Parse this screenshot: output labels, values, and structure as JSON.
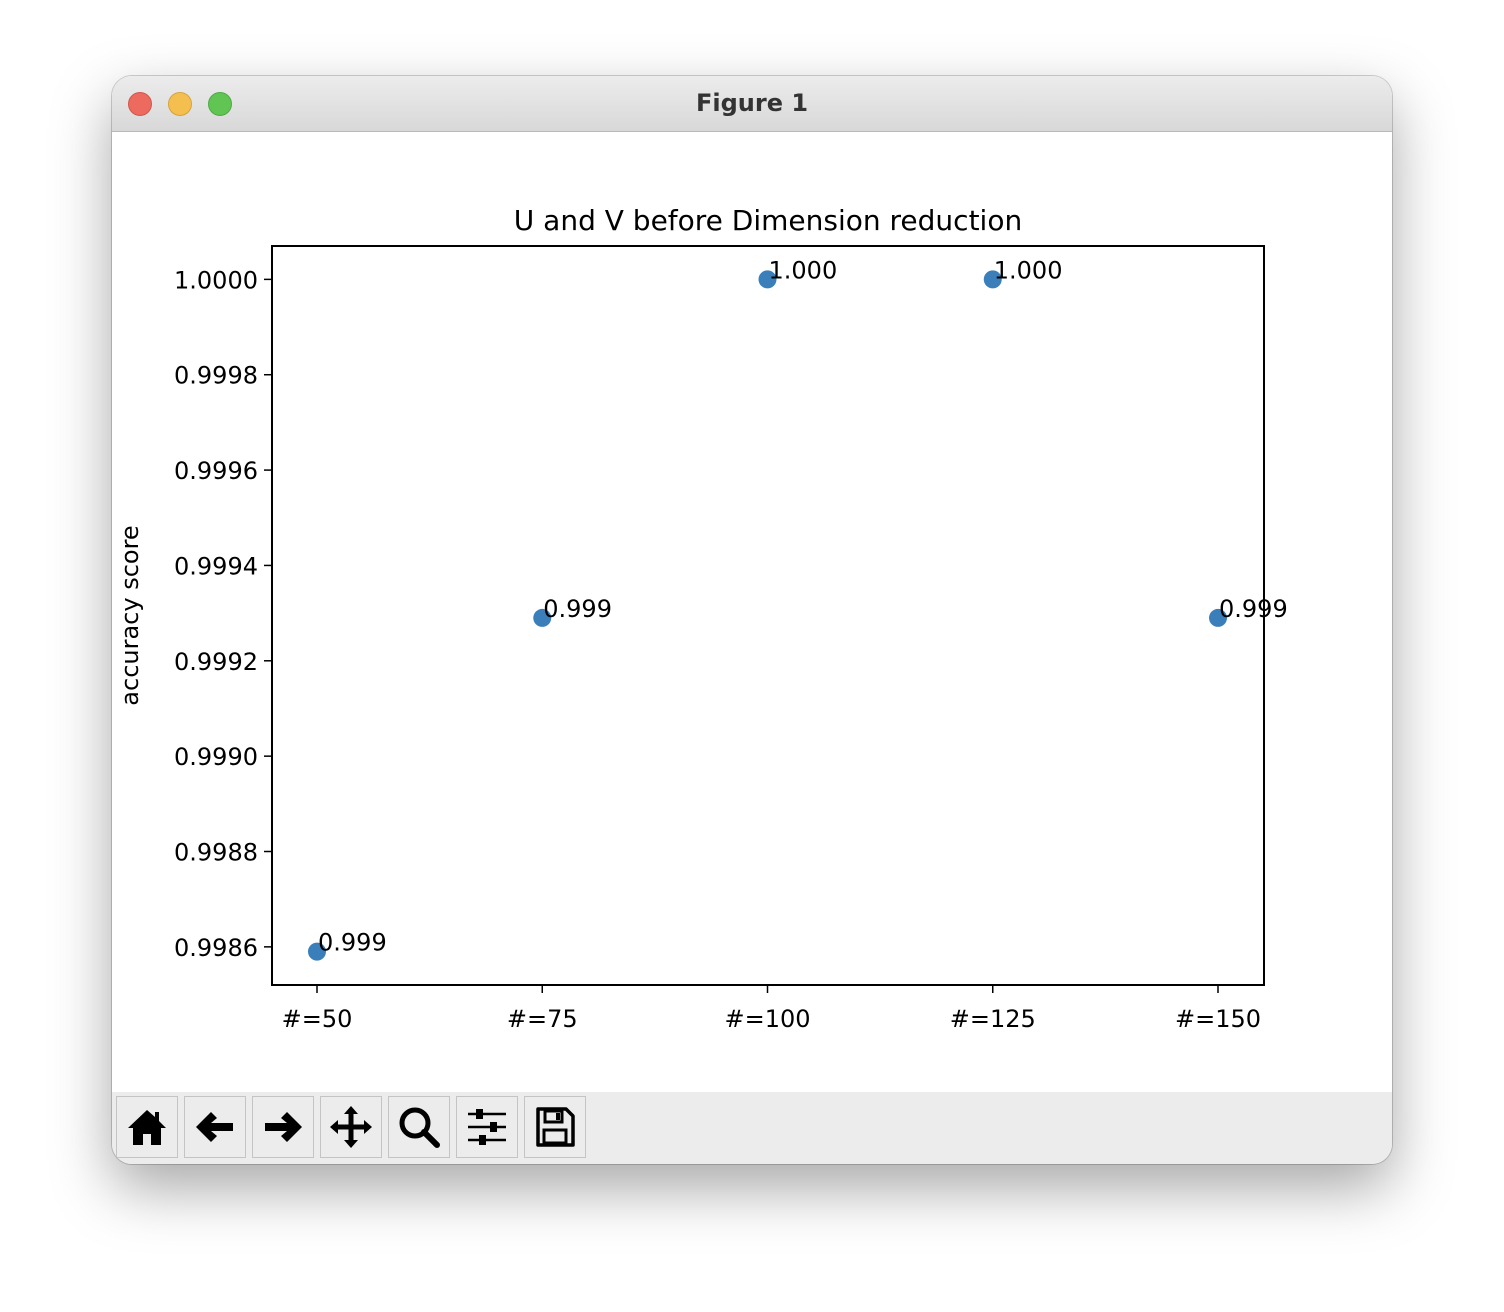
{
  "window": {
    "title": "Figure 1"
  },
  "toolbar": {
    "buttons": [
      {
        "name": "home-button",
        "icon": "home-icon"
      },
      {
        "name": "back-button",
        "icon": "arrow-left-icon"
      },
      {
        "name": "forward-button",
        "icon": "arrow-right-icon"
      },
      {
        "name": "pan-button",
        "icon": "move-icon"
      },
      {
        "name": "zoom-button",
        "icon": "search-icon"
      },
      {
        "name": "configure-subplots-button",
        "icon": "sliders-icon"
      },
      {
        "name": "save-button",
        "icon": "floppy-disk-icon"
      }
    ]
  },
  "chart_data": {
    "type": "scatter",
    "title": "U and V before Dimension reduction",
    "xlabel": "",
    "ylabel": "accuracy score",
    "categories": [
      "#=50",
      "#=75",
      "#=100",
      "#=125",
      "#=150"
    ],
    "values": [
      0.99859,
      0.99929,
      1.0,
      1.0,
      0.99929
    ],
    "point_labels": [
      "0.999",
      "0.999",
      "1.000",
      "1.000",
      "0.999"
    ],
    "yticks": [
      "0.9986",
      "0.9988",
      "0.9990",
      "0.9992",
      "0.9994",
      "0.9996",
      "0.9998",
      "1.0000"
    ],
    "ylim": [
      0.99852,
      1.00007
    ],
    "grid": false,
    "color": "#3a7fba"
  }
}
